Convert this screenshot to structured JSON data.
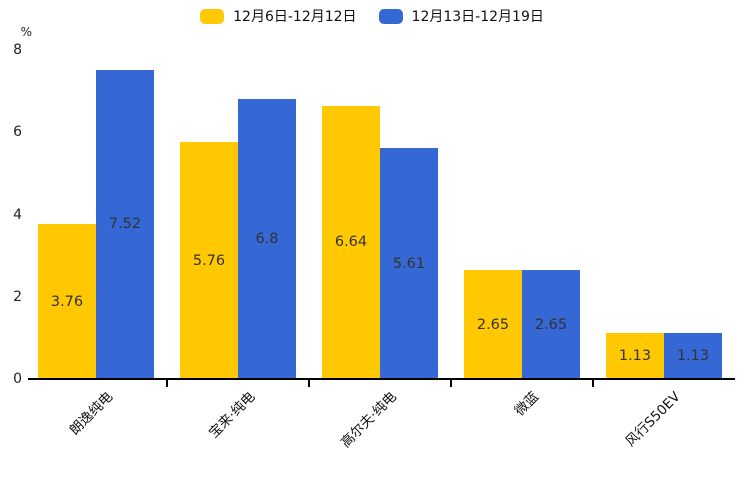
{
  "chart_data": {
    "type": "bar",
    "title": "",
    "unit_label": "%",
    "categories": [
      "朗逸纯电",
      "宝来·纯电",
      "高尔夫·纯电",
      "微蓝",
      "风行S50EV"
    ],
    "series": [
      {
        "name": "12月6日-12月12日",
        "color": "#FFC800",
        "values": [
          3.76,
          5.76,
          6.64,
          2.65,
          1.13
        ]
      },
      {
        "name": "12月13日-12月19日",
        "color": "#3568D4",
        "values": [
          7.52,
          6.8,
          5.61,
          2.65,
          1.13
        ]
      }
    ],
    "ylim": [
      0,
      8
    ],
    "yticks": [
      0,
      2,
      4,
      6,
      8
    ],
    "grid": false,
    "legend_position": "top-center",
    "value_labels": "centered-inside-bars",
    "xlabel": "",
    "ylabel": "%"
  },
  "colors": {
    "series_1": "#FFC800",
    "series_2": "#3568D4",
    "axis": "#000000",
    "value_label_text": "#333333",
    "tick_label_text": "#222222",
    "background": "#ffffff"
  }
}
